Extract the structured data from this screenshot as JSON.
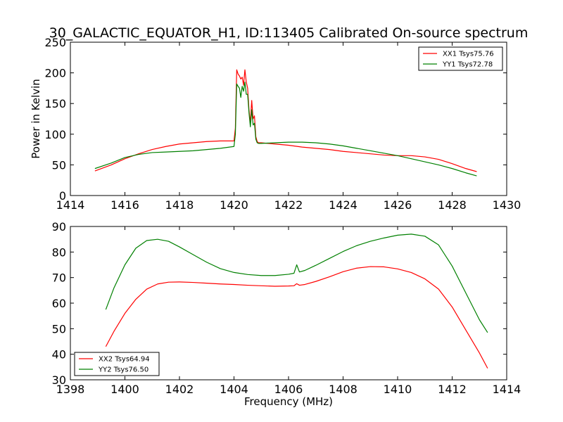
{
  "figure": {
    "title": "30_GALACTIC_EQUATOR_H1, ID:113405 Calibrated On-source spectrum"
  },
  "chart_data": [
    {
      "type": "line",
      "title": "30_GALACTIC_EQUATOR_H1, ID:113405 Calibrated On-source spectrum",
      "xlabel": "",
      "ylabel": "Power in Kelvin",
      "xlim": [
        1414,
        1430
      ],
      "ylim": [
        0,
        250
      ],
      "xticks": [
        1414,
        1416,
        1418,
        1420,
        1422,
        1424,
        1426,
        1428,
        1430
      ],
      "yticks": [
        0,
        50,
        100,
        150,
        200,
        250
      ],
      "grid": false,
      "legend_position": "top-right",
      "series": [
        {
          "name": "XX1 Tsys75.76",
          "color": "#ff0000",
          "x": [
            1414.9,
            1415.5,
            1416,
            1416.5,
            1417,
            1417.5,
            1418,
            1418.5,
            1419,
            1419.5,
            1420,
            1420.05,
            1420.1,
            1420.15,
            1420.2,
            1420.25,
            1420.3,
            1420.35,
            1420.4,
            1420.45,
            1420.5,
            1420.55,
            1420.6,
            1420.65,
            1420.7,
            1420.75,
            1420.8,
            1420.85,
            1420.9,
            1420.95,
            1421,
            1421.5,
            1422,
            1422.5,
            1423,
            1423.5,
            1424,
            1424.5,
            1425,
            1425.5,
            1426,
            1426.5,
            1427,
            1427.5,
            1428,
            1428.5,
            1428.9
          ],
          "values": [
            40,
            50,
            60,
            68,
            75,
            80,
            84,
            86,
            88,
            89,
            89,
            110,
            205,
            198,
            195,
            190,
            193,
            180,
            205,
            185,
            175,
            140,
            118,
            155,
            125,
            130,
            96,
            88,
            86,
            86,
            86,
            84,
            82,
            79,
            77,
            75,
            72,
            70,
            68,
            66,
            65,
            65,
            63,
            59,
            52,
            44,
            39
          ]
        },
        {
          "name": "YY1 Tsys72.78",
          "color": "#008000",
          "x": [
            1414.9,
            1415.5,
            1416,
            1416.5,
            1417,
            1417.5,
            1418,
            1418.5,
            1419,
            1419.5,
            1420,
            1420.05,
            1420.1,
            1420.15,
            1420.2,
            1420.25,
            1420.3,
            1420.35,
            1420.4,
            1420.45,
            1420.5,
            1420.55,
            1420.6,
            1420.65,
            1420.7,
            1420.75,
            1420.8,
            1420.85,
            1420.9,
            1420.95,
            1421,
            1421.5,
            1422,
            1422.5,
            1423,
            1423.5,
            1424,
            1424.5,
            1425,
            1425.5,
            1426,
            1426.5,
            1427,
            1427.5,
            1428,
            1428.5,
            1428.9
          ],
          "values": [
            44,
            53,
            62,
            67,
            70,
            71,
            72,
            73,
            75,
            77,
            80,
            100,
            182,
            178,
            175,
            160,
            178,
            170,
            185,
            165,
            165,
            135,
            112,
            140,
            115,
            118,
            92,
            86,
            85,
            85,
            85,
            86,
            87,
            87,
            86,
            84,
            81,
            77,
            73,
            69,
            65,
            60,
            55,
            50,
            44,
            37,
            32
          ]
        }
      ]
    },
    {
      "type": "line",
      "title": "",
      "xlabel": "Frequency (MHz)",
      "ylabel": "",
      "xlim": [
        1398,
        1414
      ],
      "ylim": [
        30,
        90
      ],
      "xticks": [
        1398,
        1400,
        1402,
        1404,
        1406,
        1408,
        1410,
        1412,
        1414
      ],
      "yticks": [
        30,
        40,
        50,
        60,
        70,
        80,
        90
      ],
      "grid": false,
      "legend_position": "bottom-left",
      "series": [
        {
          "name": "XX2 Tsys64.94",
          "color": "#ff0000",
          "x": [
            1399.3,
            1399.6,
            1400,
            1400.4,
            1400.8,
            1401.2,
            1401.6,
            1402,
            1402.5,
            1403,
            1403.5,
            1404,
            1404.5,
            1405,
            1405.5,
            1406,
            1406.2,
            1406.3,
            1406.4,
            1406.6,
            1407,
            1407.5,
            1408,
            1408.5,
            1409,
            1409.5,
            1410,
            1410.5,
            1411,
            1411.5,
            1412,
            1412.5,
            1413,
            1413.3
          ],
          "values": [
            43,
            49,
            56,
            61.5,
            65.5,
            67.5,
            68.2,
            68.3,
            68.1,
            67.8,
            67.5,
            67.3,
            67.0,
            66.8,
            66.6,
            66.7,
            66.8,
            67.6,
            67.0,
            67.3,
            68.5,
            70.3,
            72.3,
            73.7,
            74.3,
            74.2,
            73.4,
            72.0,
            69.5,
            65.5,
            58.5,
            49.5,
            40.5,
            34.5
          ]
        },
        {
          "name": "YY2 Tsys76.50",
          "color": "#008000",
          "x": [
            1399.3,
            1399.6,
            1400,
            1400.4,
            1400.8,
            1401.2,
            1401.6,
            1402,
            1402.5,
            1403,
            1403.5,
            1404,
            1404.5,
            1405,
            1405.5,
            1406,
            1406.2,
            1406.3,
            1406.4,
            1406.6,
            1407,
            1407.5,
            1408,
            1408.5,
            1409,
            1409.5,
            1410,
            1410.5,
            1411,
            1411.5,
            1412,
            1412.5,
            1413,
            1413.3
          ],
          "values": [
            57.5,
            66,
            75,
            81.5,
            84.5,
            85.0,
            84.2,
            82.0,
            79.0,
            76.0,
            73.5,
            72.0,
            71.2,
            70.8,
            70.8,
            71.3,
            71.7,
            75.0,
            72.2,
            72.8,
            74.8,
            77.5,
            80.2,
            82.5,
            84.2,
            85.5,
            86.6,
            87.0,
            86.2,
            82.8,
            74.5,
            64.0,
            53.5,
            48.5
          ]
        }
      ]
    }
  ]
}
